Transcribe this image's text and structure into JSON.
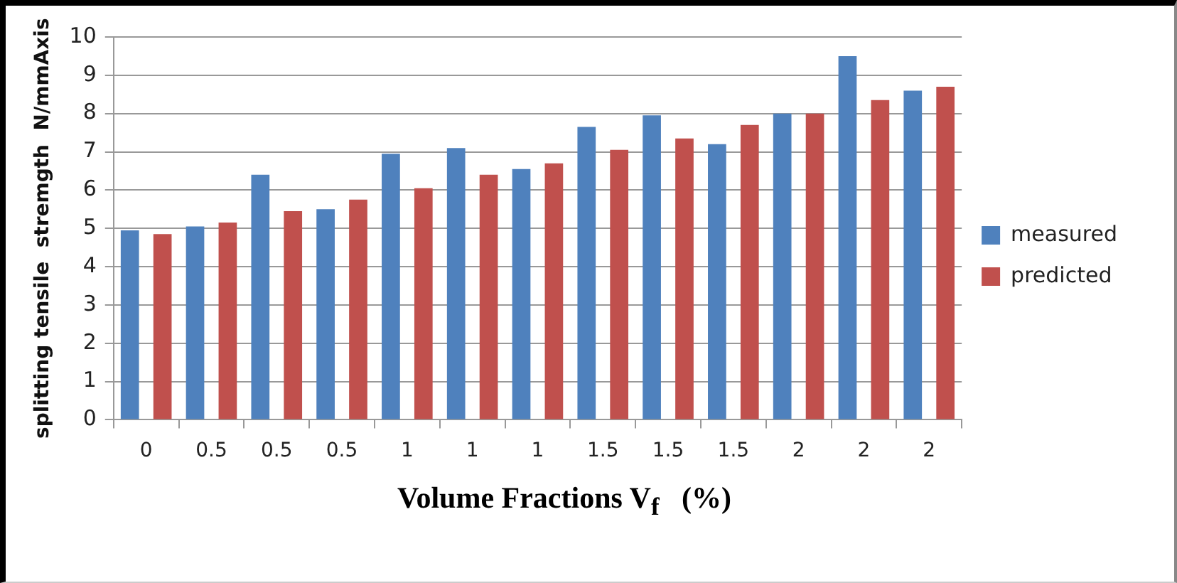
{
  "chart_data": {
    "type": "bar",
    "xlabel": "Volume Fractions V$_{f}$   (%)",
    "ylabel": "splitting tensile  stremgth  N/mmAxis",
    "categories": [
      "0",
      "0.5",
      "0.5",
      "0.5",
      "1",
      "1",
      "1",
      "1.5",
      "1.5",
      "1.5",
      "2",
      "2",
      "2"
    ],
    "series": [
      {
        "name": "measured",
        "color": "#4f81bd",
        "values": [
          4.95,
          5.05,
          6.4,
          5.5,
          6.95,
          7.1,
          6.55,
          7.65,
          7.95,
          7.2,
          8.0,
          9.5,
          8.6
        ]
      },
      {
        "name": "predicted",
        "color": "#c0504d",
        "values": [
          4.85,
          5.15,
          5.45,
          5.75,
          6.05,
          6.4,
          6.7,
          7.05,
          7.35,
          7.7,
          8.0,
          8.35,
          8.7
        ]
      }
    ],
    "ylim": [
      0,
      10
    ],
    "yticks": [
      0,
      1,
      2,
      3,
      4,
      5,
      6,
      7,
      8,
      9,
      10
    ],
    "grid": "y",
    "legend": "right"
  }
}
